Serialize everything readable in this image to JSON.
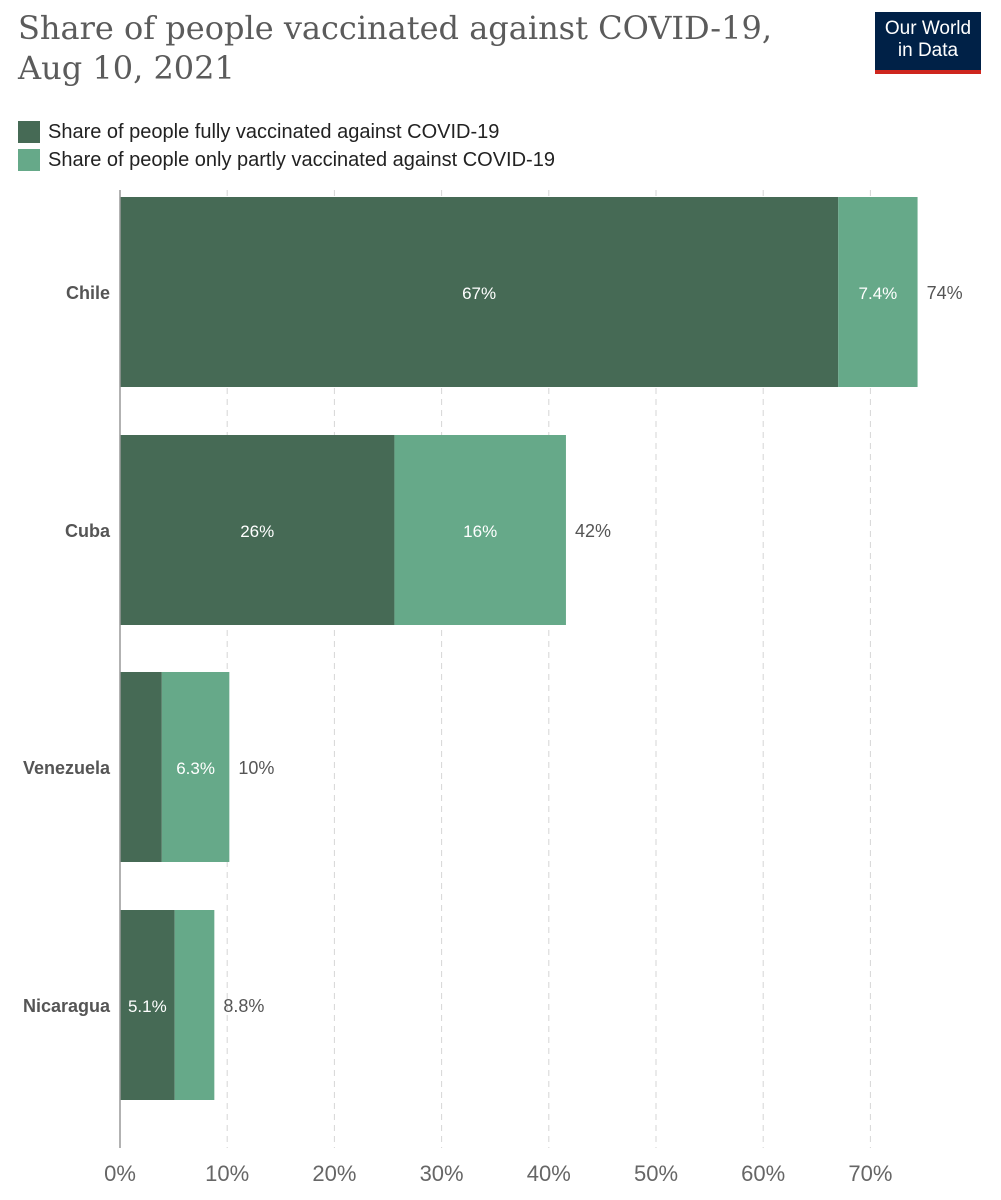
{
  "title": "Share of people vaccinated against COVID-19, Aug 10, 2021",
  "logo": {
    "line1": "Our World",
    "line2": "in Data",
    "bg_color": "#002147",
    "accent_color": "#ce261e"
  },
  "colors": {
    "fully": "#466a55",
    "partly": "#66a989",
    "grid": "#d6d6d6",
    "axis": "#999999",
    "country_label": "#555555",
    "tick_label": "#666666",
    "total_label": "#555555",
    "inner_label": "#ffffff"
  },
  "chart_data": {
    "type": "bar",
    "orientation": "horizontal",
    "stacked": true,
    "title": "Share of people vaccinated against COVID-19, Aug 10, 2021",
    "legend_position": "top-left",
    "grid": true,
    "xlim": [
      0,
      70
    ],
    "x_ticks": [
      0,
      10,
      20,
      30,
      40,
      50,
      60,
      70
    ],
    "x_tick_labels": [
      "0%",
      "10%",
      "20%",
      "30%",
      "40%",
      "50%",
      "60%",
      "70%"
    ],
    "categories": [
      "Chile",
      "Cuba",
      "Venezuela",
      "Nicaragua"
    ],
    "series": [
      {
        "name": "Share of people fully vaccinated against COVID-19",
        "values": [
          67,
          25.6,
          3.9,
          5.1
        ],
        "labels": [
          "67%",
          "26%",
          "",
          "5.1%"
        ]
      },
      {
        "name": "Share of people only partly vaccinated against COVID-19",
        "values": [
          7.4,
          16,
          6.3,
          3.7
        ],
        "labels": [
          "7.4%",
          "16%",
          "6.3%",
          ""
        ]
      }
    ],
    "totals": [
      74,
      42,
      10,
      8.8
    ],
    "total_labels": [
      "74%",
      "42%",
      "10%",
      "8.8%"
    ]
  }
}
